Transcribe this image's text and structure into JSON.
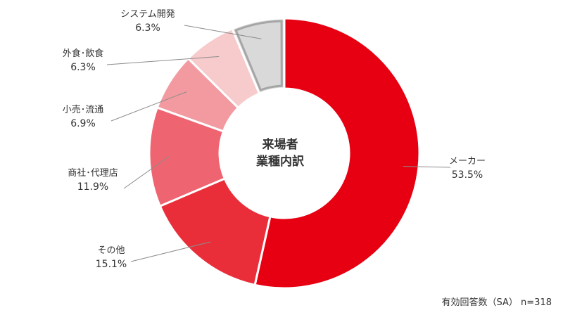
{
  "chart_data": {
    "type": "pie",
    "donut": true,
    "center_label": [
      "来場者",
      "業種内訳"
    ],
    "slices": [
      {
        "label": "メーカー",
        "value": 53.5,
        "value_text": "53.5%",
        "color": "#E60012"
      },
      {
        "label": "その他",
        "value": 15.1,
        "value_text": "15.1%",
        "color": "#E92E3A"
      },
      {
        "label": "商社･代理店",
        "value": 11.9,
        "value_text": "11.9%",
        "color": "#EE6470"
      },
      {
        "label": "小売･流通",
        "value": 6.9,
        "value_text": "6.9%",
        "color": "#F29AA0"
      },
      {
        "label": "外食･飲食",
        "value": 6.3,
        "value_text": "6.3%",
        "color": "#F7CACC"
      },
      {
        "label": "システム開発",
        "value": 6.3,
        "value_text": "6.3%",
        "color": "#D9D9D9"
      }
    ],
    "start_angle_deg": 0,
    "direction": "clockwise"
  },
  "footnote": "有効回答数（SA） n=318"
}
